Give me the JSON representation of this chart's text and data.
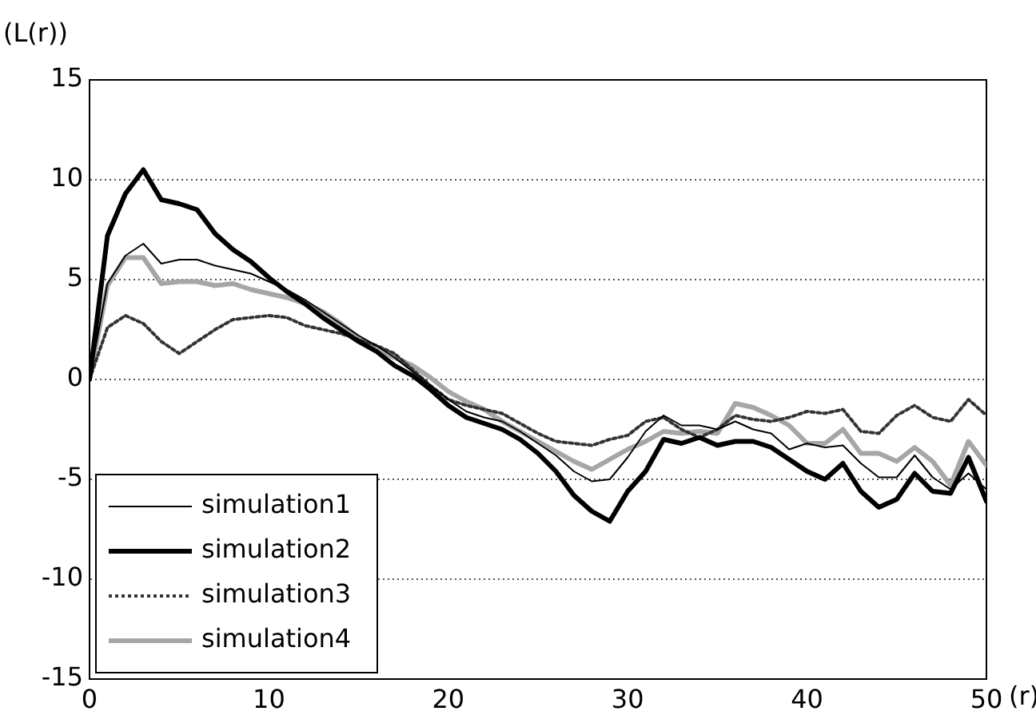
{
  "chart_data": {
    "type": "line",
    "xlabel": "(r)",
    "ylabel": "(L(r))",
    "x": [
      0,
      1,
      2,
      3,
      4,
      5,
      6,
      7,
      8,
      9,
      10,
      11,
      12,
      13,
      14,
      15,
      16,
      17,
      18,
      19,
      20,
      21,
      22,
      23,
      24,
      25,
      26,
      27,
      28,
      29,
      30,
      31,
      32,
      33,
      34,
      35,
      36,
      37,
      38,
      39,
      40,
      41,
      42,
      43,
      44,
      45,
      46,
      47,
      48,
      49,
      50
    ],
    "xlim": [
      0,
      50
    ],
    "xticks": [
      0,
      10,
      20,
      30,
      40,
      50
    ],
    "ylim": [
      -15,
      15
    ],
    "yticks": [
      -15,
      -10,
      -5,
      0,
      5,
      10,
      15
    ],
    "grid": "y",
    "legend": "bottom left",
    "marker": "none",
    "series": [
      {
        "name": "simulation1",
        "color": "#000000",
        "line_style": "solid",
        "values": [
          0,
          4.8,
          6.2,
          6.8,
          5.8,
          6.0,
          6.0,
          5.7,
          5.5,
          5.3,
          4.9,
          4.5,
          4.0,
          3.4,
          2.8,
          2.2,
          1.7,
          1.1,
          0.4,
          -0.3,
          -1.0,
          -1.6,
          -1.9,
          -2.1,
          -2.6,
          -3.2,
          -3.8,
          -4.6,
          -5.1,
          -5.0,
          -3.9,
          -2.6,
          -1.8,
          -2.3,
          -2.3,
          -2.5,
          -2.1,
          -2.5,
          -2.7,
          -3.5,
          -3.2,
          -3.4,
          -3.3,
          -4.2,
          -4.9,
          -4.9,
          -3.8,
          -4.9,
          -5.5,
          -4.7,
          -5.5
        ]
      },
      {
        "name": "simulation2",
        "color": "#000000",
        "line_style": "solid",
        "values": [
          0,
          7.2,
          9.3,
          10.5,
          9.0,
          8.8,
          8.5,
          7.3,
          6.5,
          5.9,
          5.1,
          4.4,
          3.8,
          3.1,
          2.5,
          1.9,
          1.4,
          0.7,
          0.2,
          -0.5,
          -1.3,
          -1.9,
          -2.2,
          -2.5,
          -3.0,
          -3.7,
          -4.6,
          -5.8,
          -6.6,
          -7.1,
          -5.6,
          -4.6,
          -3.0,
          -3.2,
          -2.9,
          -3.3,
          -3.1,
          -3.1,
          -3.4,
          -4.0,
          -4.6,
          -5.0,
          -4.2,
          -5.6,
          -6.4,
          -6.0,
          -4.7,
          -5.6,
          -5.7,
          -3.9,
          -6.1
        ]
      },
      {
        "name": "simulation3",
        "color": "#333333",
        "line_style": "dotted",
        "values": [
          0,
          2.6,
          3.2,
          2.8,
          1.9,
          1.3,
          1.9,
          2.5,
          3.0,
          3.1,
          3.2,
          3.1,
          2.7,
          2.5,
          2.3,
          2.0,
          1.7,
          1.3,
          0.5,
          -0.3,
          -1.0,
          -1.3,
          -1.5,
          -1.7,
          -2.2,
          -2.7,
          -3.1,
          -3.2,
          -3.3,
          -3.0,
          -2.8,
          -2.1,
          -1.9,
          -2.5,
          -2.9,
          -2.5,
          -1.8,
          -2.0,
          -2.1,
          -1.9,
          -1.6,
          -1.7,
          -1.5,
          -2.6,
          -2.7,
          -1.8,
          -1.3,
          -1.9,
          -2.1,
          -1.0,
          -1.8
        ]
      },
      {
        "name": "simulation4",
        "color": "#a6a6a6",
        "line_style": "solid",
        "values": [
          0,
          4.7,
          6.1,
          6.1,
          4.8,
          4.9,
          4.9,
          4.7,
          4.8,
          4.5,
          4.3,
          4.1,
          3.8,
          3.4,
          2.8,
          2.1,
          1.5,
          1.1,
          0.7,
          0.1,
          -0.6,
          -1.1,
          -1.5,
          -2.1,
          -2.6,
          -3.1,
          -3.6,
          -4.1,
          -4.5,
          -4.0,
          -3.5,
          -3.1,
          -2.6,
          -2.7,
          -2.6,
          -2.7,
          -1.2,
          -1.4,
          -1.8,
          -2.3,
          -3.2,
          -3.2,
          -2.5,
          -3.7,
          -3.7,
          -4.1,
          -3.4,
          -4.1,
          -5.3,
          -3.1,
          -4.3
        ]
      }
    ]
  }
}
